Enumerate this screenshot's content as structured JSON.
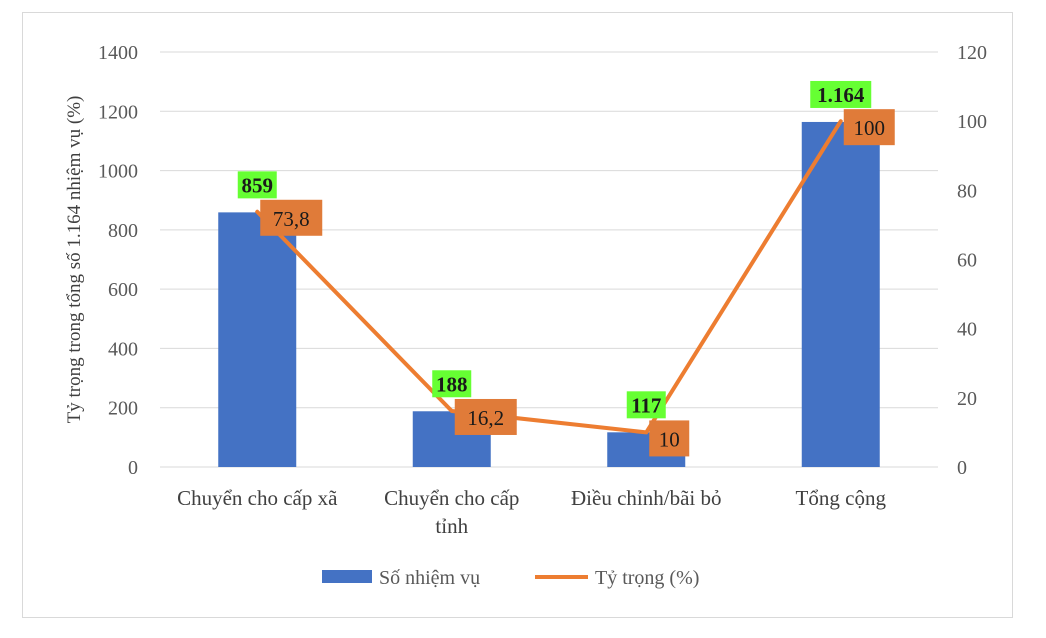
{
  "chart_data": {
    "type": "bar",
    "categories": [
      [
        "Chuyển cho cấp xã"
      ],
      [
        "Chuyển cho cấp",
        "tỉnh"
      ],
      [
        "Điều chỉnh/bãi bỏ"
      ],
      [
        "Tổng cộng"
      ]
    ],
    "series": [
      {
        "name": "Số nhiệm vụ",
        "type": "bar",
        "axis": "left",
        "values": [
          859,
          188,
          117,
          1164
        ],
        "labels": [
          "859",
          "188",
          "117",
          "1.164"
        ],
        "color": "#4472c4",
        "label_bg": "#66ff33"
      },
      {
        "name": "Tỷ trọng (%)",
        "type": "line",
        "axis": "right",
        "values": [
          73.8,
          16.2,
          10,
          100
        ],
        "labels": [
          "73,8",
          "16,2",
          "10",
          "100"
        ],
        "color": "#ed7d31",
        "label_bg": "#e07b39"
      }
    ],
    "ylabel": "Tỷ trọng trong tổng số 1.164 nhiệm vụ (%)",
    "y_left": {
      "min": 0,
      "max": 1400,
      "step": 200
    },
    "y_right": {
      "min": 0,
      "max": 120,
      "step": 20
    },
    "grid": true,
    "legend": "bottom"
  }
}
